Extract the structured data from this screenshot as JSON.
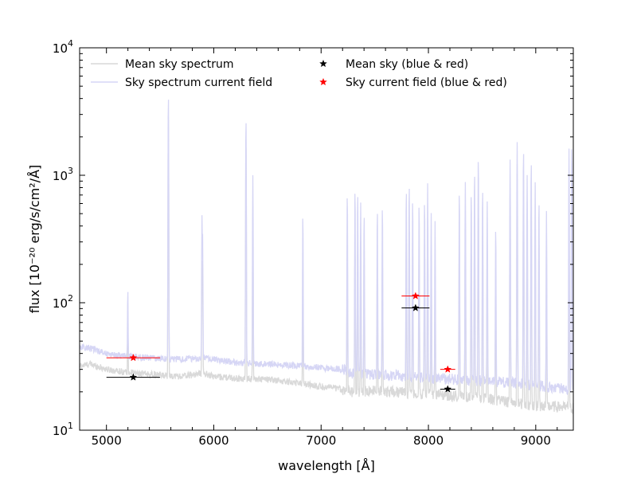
{
  "chart_data": {
    "type": "line",
    "xlabel": "wavelength [Å]",
    "ylabel": "flux [10⁻²⁰ erg/s/cm²/Å]",
    "xlim": [
      4750,
      9350
    ],
    "ylim": [
      10,
      10000
    ],
    "yscale": "log",
    "grid": false,
    "legend_placement": "top",
    "x_ticks": [
      5000,
      6000,
      7000,
      8000,
      9000
    ],
    "x_tick_labels": [
      "5000",
      "6000",
      "7000",
      "8000",
      "9000"
    ],
    "y_ticks": [
      10,
      100,
      1000,
      10000
    ],
    "y_tick_labels": [
      {
        "base": "10",
        "exp": "1"
      },
      {
        "base": "10",
        "exp": "2"
      },
      {
        "base": "10",
        "exp": "3"
      },
      {
        "base": "10",
        "exp": "4"
      }
    ],
    "series": [
      {
        "name": "Mean sky spectrum",
        "kind": "line",
        "color": "#d9d9d9",
        "continuum": [
          [
            4750,
            32
          ],
          [
            4850,
            33
          ],
          [
            5000,
            30
          ],
          [
            5200,
            28.5
          ],
          [
            5500,
            27
          ],
          [
            5700,
            26.5
          ],
          [
            5900,
            28
          ],
          [
            6000,
            26.5
          ],
          [
            6200,
            25.5
          ],
          [
            6500,
            25
          ],
          [
            6800,
            23.5
          ],
          [
            7000,
            22
          ],
          [
            7200,
            21
          ],
          [
            7300,
            20
          ],
          [
            7500,
            20.5
          ],
          [
            7700,
            20
          ],
          [
            7900,
            19.5
          ],
          [
            8100,
            19
          ],
          [
            8300,
            18.5
          ],
          [
            8500,
            18
          ],
          [
            8700,
            17
          ],
          [
            8900,
            16
          ],
          [
            9100,
            15.5
          ],
          [
            9350,
            15
          ]
        ],
        "lines": [
          [
            5199,
            45
          ],
          [
            5577,
            3000
          ],
          [
            5890,
            180
          ],
          [
            5896,
            140
          ],
          [
            6300,
            1800
          ],
          [
            6364,
            400
          ],
          [
            6830,
            120
          ],
          [
            7244,
            250
          ],
          [
            7316,
            300
          ],
          [
            7341,
            320
          ],
          [
            7369,
            280
          ],
          [
            7401,
            260
          ],
          [
            7524,
            200
          ],
          [
            7571,
            240
          ],
          [
            7794,
            330
          ],
          [
            7821,
            380
          ],
          [
            7853,
            310
          ],
          [
            7913,
            260
          ],
          [
            7964,
            300
          ],
          [
            7993,
            360
          ],
          [
            8026,
            240
          ],
          [
            8062,
            150
          ],
          [
            8288,
            350
          ],
          [
            8344,
            400
          ],
          [
            8399,
            310
          ],
          [
            8430,
            500
          ],
          [
            8465,
            650
          ],
          [
            8505,
            400
          ],
          [
            8548,
            300
          ],
          [
            8627,
            150
          ],
          [
            8761,
            700
          ],
          [
            8827,
            1200
          ],
          [
            8886,
            1000
          ],
          [
            8920,
            450
          ],
          [
            8958,
            650
          ],
          [
            8995,
            400
          ],
          [
            9030,
            300
          ],
          [
            9100,
            200
          ],
          [
            9310,
            300
          ]
        ]
      },
      {
        "name": "Sky spectrum current field",
        "kind": "line",
        "color": "#d6d6f5",
        "continuum": [
          [
            4750,
            45
          ],
          [
            4850,
            44
          ],
          [
            5000,
            40
          ],
          [
            5200,
            38
          ],
          [
            5400,
            37
          ],
          [
            5550,
            36.5
          ],
          [
            5700,
            36
          ],
          [
            5900,
            37
          ],
          [
            6000,
            36
          ],
          [
            6200,
            34
          ],
          [
            6500,
            33
          ],
          [
            6800,
            32
          ],
          [
            7000,
            31
          ],
          [
            7200,
            30
          ],
          [
            7300,
            28
          ],
          [
            7500,
            27.5
          ],
          [
            7700,
            27
          ],
          [
            7900,
            26
          ],
          [
            8100,
            25.5
          ],
          [
            8300,
            25
          ],
          [
            8500,
            24.5
          ],
          [
            8700,
            24
          ],
          [
            8900,
            23
          ],
          [
            9100,
            22
          ],
          [
            9350,
            21
          ]
        ],
        "lines": [
          [
            5199,
            95
          ],
          [
            5577,
            4300
          ],
          [
            5890,
            440
          ],
          [
            5896,
            300
          ],
          [
            6300,
            2800
          ],
          [
            6364,
            970
          ],
          [
            6830,
            470
          ],
          [
            7244,
            700
          ],
          [
            7316,
            760
          ],
          [
            7341,
            720
          ],
          [
            7369,
            580
          ],
          [
            7401,
            480
          ],
          [
            7524,
            520
          ],
          [
            7571,
            560
          ],
          [
            7794,
            760
          ],
          [
            7821,
            840
          ],
          [
            7853,
            640
          ],
          [
            7913,
            590
          ],
          [
            7964,
            620
          ],
          [
            7993,
            840
          ],
          [
            8026,
            480
          ],
          [
            8062,
            410
          ],
          [
            8288,
            740
          ],
          [
            8344,
            860
          ],
          [
            8399,
            720
          ],
          [
            8430,
            1050
          ],
          [
            8465,
            1380
          ],
          [
            8505,
            780
          ],
          [
            8548,
            600
          ],
          [
            8627,
            370
          ],
          [
            8761,
            1300
          ],
          [
            8827,
            1800
          ],
          [
            8886,
            1600
          ],
          [
            8920,
            980
          ],
          [
            8958,
            1300
          ],
          [
            8995,
            860
          ],
          [
            9030,
            620
          ],
          [
            9100,
            500
          ],
          [
            9310,
            1600
          ],
          [
            9335,
            1750
          ]
        ]
      },
      {
        "name": "Mean sky (blue & red)",
        "kind": "points",
        "color": "#000000",
        "marker": "star",
        "points": [
          {
            "x": 5250,
            "y": 26,
            "xerr": [
              5000,
              5500
            ]
          },
          {
            "x": 7880,
            "y": 91,
            "xerr": [
              7750,
              8010
            ]
          },
          {
            "x": 8180,
            "y": 21,
            "xerr": [
              8110,
              8250
            ]
          }
        ]
      },
      {
        "name": "Sky current field (blue & red)",
        "kind": "points",
        "color": "#ff0000",
        "marker": "star",
        "points": [
          {
            "x": 5250,
            "y": 37,
            "xerr": [
              5000,
              5500
            ]
          },
          {
            "x": 7880,
            "y": 113,
            "xerr": [
              7750,
              8010
            ]
          },
          {
            "x": 8180,
            "y": 30,
            "xerr": [
              8110,
              8250
            ]
          }
        ]
      }
    ]
  }
}
